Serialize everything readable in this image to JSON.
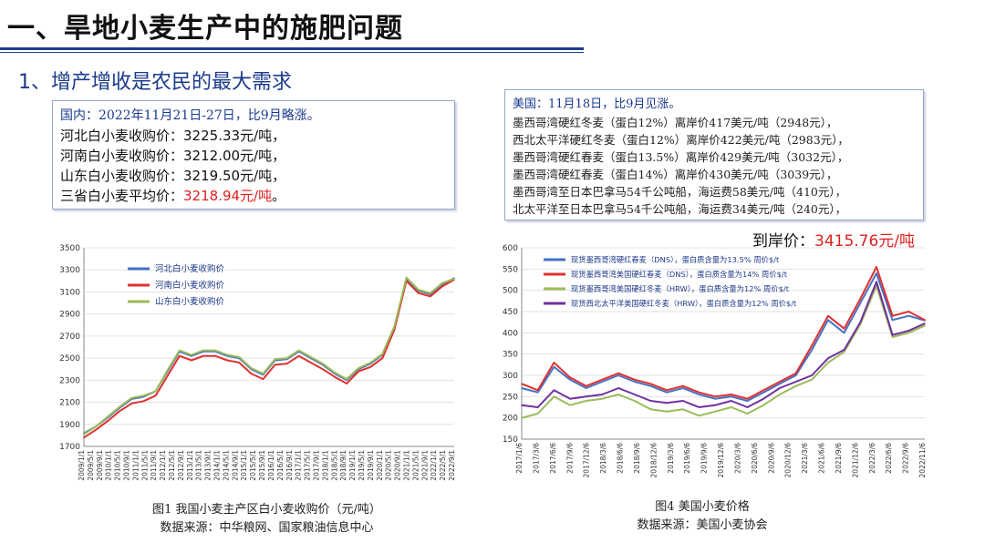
{
  "header": {
    "title": "一、旱地小麦生产中的施肥问题",
    "section": "1、增产增收是农民的最大需求"
  },
  "domestic": {
    "heading": "国内：2022年11月21日-27日，比9月略涨。",
    "rows": [
      {
        "label": "河北白小麦收购价：",
        "value": "3225.33元/吨，"
      },
      {
        "label": "河南白小麦收购价：",
        "value": "3212.00元/吨，"
      },
      {
        "label": "山东白小麦收购价：",
        "value": "3219.50元/吨，"
      }
    ],
    "avg_label": "三省白小麦平均价：",
    "avg_value": "3218.94元/吨",
    "avg_tail": "。"
  },
  "us": {
    "heading": "美国：11月18日，比9月见涨。",
    "items": [
      "墨西哥湾硬红冬麦（蛋白12%）离岸价417美元/吨（2948元），",
      "西北太平洋硬红冬麦（蛋白12%）离岸价422美元/吨（2983元），",
      "墨西哥湾硬红春麦（蛋白13.5%）离岸价429美元/吨（3032元），",
      "墨西哥湾硬红春麦（蛋白14%）离岸价430美元/吨（3039元），",
      "墨西哥湾至日本巴拿马54千公吨船，海运费58美元/吨（410元），",
      "北太平洋至日本巴拿马54千公吨船，海运费34美元/吨（240元），"
    ],
    "landed_label": "到岸价：",
    "landed_value": "3415.76元/吨"
  },
  "figure1": {
    "caption": "图1  我国小麦主产区白小麦收购价（元/吨）",
    "source": "数据来源：中华粮网、国家粮油信息中心"
  },
  "figure4": {
    "caption": "图4  美国小麦价格",
    "source": "数据来源：美国小麦协会"
  },
  "chart_data": [
    {
      "type": "line",
      "ylim": [
        1700,
        3500
      ],
      "yticks": [
        1700,
        1900,
        2100,
        2300,
        2500,
        2700,
        2900,
        3100,
        3300,
        3500
      ],
      "x_tick_labels": [
        "2009/1/1",
        "2009/5/1",
        "2009/9/1",
        "2010/1/1",
        "2010/5/1",
        "2010/9/1",
        "2011/1/1",
        "2011/5/1",
        "2011/9/1",
        "2012/1/1",
        "2012/5/1",
        "2012/9/1",
        "2013/1/1",
        "2013/5/1",
        "2013/9/1",
        "2014/1/1",
        "2014/5/1",
        "2014/9/1",
        "2015/1/1",
        "2015/5/1",
        "2015/9/1",
        "2016/1/1",
        "2016/5/1",
        "2016/9/1",
        "2017/1/1",
        "2017/5/1",
        "2017/9/1",
        "2018/1/1",
        "2018/5/1",
        "2018/9/1",
        "2019/1/1",
        "2019/5/1",
        "2019/9/1",
        "2020/1/1",
        "2020/5/1",
        "2020/9/1",
        "2021/1/1",
        "2021/5/1",
        "2021/9/1",
        "2022/1/1",
        "2022/5/1",
        "2022/9/1"
      ],
      "x": [
        "2009/1",
        "2009/7",
        "2010/1",
        "2010/7",
        "2011/1",
        "2011/7",
        "2012/1",
        "2012/7",
        "2013/1",
        "2013/7",
        "2014/1",
        "2014/7",
        "2015/1",
        "2015/7",
        "2016/1",
        "2016/7",
        "2017/1",
        "2017/7",
        "2018/1",
        "2018/7",
        "2019/1",
        "2019/7",
        "2020/1",
        "2020/7",
        "2021/1",
        "2021/7",
        "2022/1",
        "2022/3",
        "2022/5",
        "2022/7",
        "2022/9",
        "2022/11"
      ],
      "series": [
        {
          "name": "河北白小麦收购价",
          "color": "#4472c4",
          "values": [
            1820,
            1880,
            1960,
            2050,
            2130,
            2150,
            2200,
            2380,
            2560,
            2520,
            2560,
            2560,
            2520,
            2500,
            2400,
            2350,
            2480,
            2490,
            2560,
            2500,
            2440,
            2360,
            2300,
            2400,
            2450,
            2530,
            2780,
            3220,
            3110,
            3080,
            3170,
            3225
          ]
        },
        {
          "name": "河南白小麦收购价",
          "color": "#e03030",
          "values": [
            1780,
            1850,
            1930,
            2020,
            2090,
            2110,
            2160,
            2340,
            2520,
            2480,
            2520,
            2520,
            2480,
            2460,
            2360,
            2310,
            2440,
            2450,
            2520,
            2460,
            2400,
            2330,
            2270,
            2380,
            2420,
            2500,
            2760,
            3200,
            3090,
            3060,
            3150,
            3212
          ]
        },
        {
          "name": "山东白小麦收购价",
          "color": "#9bbb59",
          "values": [
            1810,
            1880,
            1970,
            2060,
            2140,
            2160,
            2200,
            2390,
            2570,
            2530,
            2570,
            2570,
            2530,
            2510,
            2410,
            2360,
            2490,
            2500,
            2570,
            2510,
            2450,
            2370,
            2310,
            2410,
            2460,
            2540,
            2790,
            3230,
            3120,
            3090,
            3180,
            3220
          ]
        }
      ]
    },
    {
      "type": "line",
      "ylim": [
        150,
        600
      ],
      "yticks": [
        150,
        200,
        250,
        300,
        350,
        400,
        450,
        500,
        550,
        600
      ],
      "x_tick_labels": [
        "2017/1/6",
        "2017/3/6",
        "2017/6/6",
        "2017/9/6",
        "2017/12/6",
        "2018/3/6",
        "2018/6/6",
        "2018/9/6",
        "2018/12/6",
        "2019/3/6",
        "2019/6/6",
        "2019/9/6",
        "2019/12/6",
        "2020/3/6",
        "2020/6/6",
        "2020/9/6",
        "2020/12/6",
        "2021/3/6",
        "2021/6/6",
        "2021/9/6",
        "2021/12/6",
        "2022/3/6",
        "2022/6/6",
        "2022/9/6",
        "2022/11/6"
      ],
      "x": [
        "2017/1",
        "2017/4",
        "2017/7",
        "2017/10",
        "2018/1",
        "2018/4",
        "2018/7",
        "2018/10",
        "2019/1",
        "2019/4",
        "2019/7",
        "2019/10",
        "2020/1",
        "2020/4",
        "2020/7",
        "2020/10",
        "2021/1",
        "2021/4",
        "2021/7",
        "2021/10",
        "2022/1",
        "2022/3",
        "2022/5",
        "2022/7",
        "2022/9",
        "2022/11"
      ],
      "series": [
        {
          "name": "现货墨西哥湾硬红春麦（DNS），蛋白质含量为13.5%  周价$/t",
          "color": "#4472c4",
          "values": [
            270,
            260,
            320,
            290,
            270,
            285,
            300,
            285,
            275,
            260,
            270,
            255,
            245,
            250,
            240,
            260,
            280,
            300,
            360,
            430,
            400,
            470,
            540,
            430,
            440,
            429
          ]
        },
        {
          "name": "现货墨西哥湾美国硬红春麦（DNS），蛋白质含量为14%  周价$/t",
          "color": "#e03030",
          "values": [
            280,
            265,
            330,
            295,
            275,
            290,
            305,
            290,
            280,
            265,
            275,
            260,
            250,
            255,
            245,
            265,
            285,
            305,
            370,
            440,
            410,
            480,
            555,
            440,
            450,
            430
          ]
        },
        {
          "name": "现货墨西哥湾美国硬红冬麦（HRW），蛋白质含量为12%  周价$/t",
          "color": "#9bbb59",
          "values": [
            200,
            210,
            250,
            230,
            240,
            245,
            255,
            240,
            220,
            215,
            220,
            205,
            215,
            225,
            210,
            230,
            255,
            275,
            290,
            330,
            355,
            420,
            510,
            390,
            400,
            417
          ]
        },
        {
          "name": "现货西北太平洋美国硬红冬麦（HRW），蛋白质含量为12%  周价$/t",
          "color": "#7030a0",
          "values": [
            230,
            225,
            265,
            245,
            250,
            255,
            270,
            255,
            240,
            235,
            240,
            225,
            230,
            240,
            225,
            245,
            270,
            285,
            300,
            340,
            360,
            425,
            520,
            395,
            405,
            422
          ]
        }
      ]
    }
  ]
}
